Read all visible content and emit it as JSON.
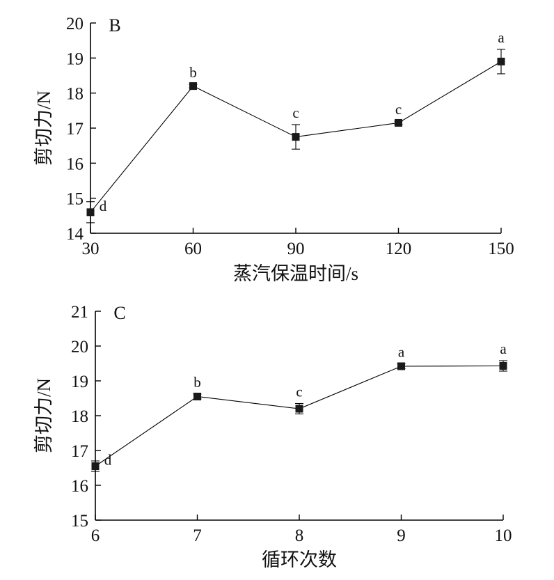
{
  "chart_data": [
    {
      "type": "line",
      "panel": "B",
      "x": [
        30,
        60,
        90,
        120,
        150
      ],
      "xticks": [
        30,
        60,
        90,
        120,
        150
      ],
      "xlim": [
        30,
        150
      ],
      "series": [
        {
          "values": [
            14.6,
            18.2,
            16.75,
            17.15,
            18.9
          ],
          "errors": [
            0.3,
            0.05,
            0.35,
            0.05,
            0.35
          ],
          "labels": [
            "d",
            "b",
            "c",
            "c",
            "a"
          ]
        }
      ],
      "ylim": [
        14,
        20
      ],
      "yticks": [
        14,
        15,
        16,
        17,
        18,
        19,
        20
      ],
      "xlabel": "蒸汽保温时间/s",
      "ylabel": "剪切力/N",
      "grid": false,
      "marker": "square",
      "line_color": "#000000"
    },
    {
      "type": "line",
      "panel": "C",
      "x": [
        6,
        7,
        8,
        9,
        10
      ],
      "xticks": [
        6,
        7,
        8,
        9,
        10
      ],
      "xlim": [
        6,
        10
      ],
      "series": [
        {
          "values": [
            16.55,
            18.55,
            18.2,
            19.42,
            19.43
          ],
          "errors": [
            0.15,
            0.07,
            0.15,
            0.07,
            0.15
          ],
          "labels": [
            "d",
            "b",
            "c",
            "a",
            "a"
          ]
        }
      ],
      "ylim": [
        15,
        21
      ],
      "yticks": [
        15,
        16,
        17,
        18,
        19,
        20,
        21
      ],
      "xlabel": "循环次数",
      "ylabel": "剪切力/N",
      "grid": false,
      "marker": "square",
      "line_color": "#000000"
    }
  ]
}
